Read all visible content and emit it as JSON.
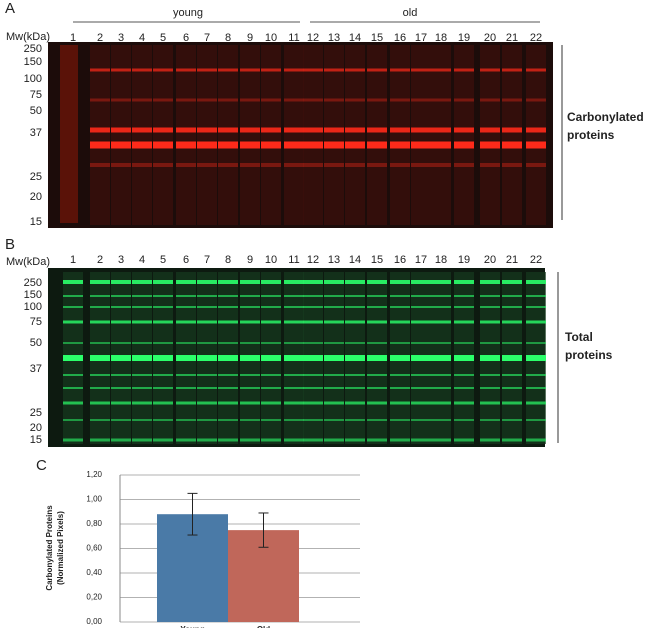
{
  "panel_a": {
    "label": "A",
    "mw_header": "Mw(kDa)",
    "groups": [
      "young",
      "old"
    ],
    "lanes": [
      "1",
      "2",
      "3",
      "4",
      "5",
      "6",
      "7",
      "8",
      "9",
      "10",
      "11",
      "12",
      "13",
      "14",
      "15",
      "16",
      "17",
      "18",
      "19",
      "20",
      "21",
      "22"
    ],
    "mw": [
      "250",
      "150",
      "100",
      "75",
      "50",
      "37",
      "25",
      "20",
      "15"
    ],
    "side_label": [
      "Carbonylated",
      "proteins"
    ]
  },
  "panel_b": {
    "label": "B",
    "mw_header": "Mw(kDa)",
    "lanes": [
      "1",
      "2",
      "3",
      "4",
      "5",
      "6",
      "7",
      "8",
      "9",
      "10",
      "11",
      "12",
      "13",
      "14",
      "15",
      "16",
      "17",
      "18",
      "19",
      "20",
      "21",
      "22"
    ],
    "mw": [
      "250",
      "150",
      "100",
      "75",
      "50",
      "37",
      "25",
      "20",
      "15"
    ],
    "side_label": [
      "Total",
      "proteins"
    ]
  },
  "chart_data": {
    "type": "bar",
    "label": "C",
    "ylabel": [
      "Carbonylated Proteins",
      "(Normalized Pixels)"
    ],
    "categories": [
      "Young",
      "Old"
    ],
    "values": [
      0.88,
      0.75
    ],
    "errors": [
      0.17,
      0.14
    ],
    "colors": [
      "#4a7aa7",
      "#c0675a"
    ],
    "ylim": [
      0,
      1.2
    ],
    "yticks": [
      {
        "value": 0,
        "label": "0,00"
      },
      {
        "value": 0.2,
        "label": "0,20"
      },
      {
        "value": 0.4,
        "label": "0,40"
      },
      {
        "value": 0.6,
        "label": "0,60"
      },
      {
        "value": 0.8,
        "label": "0,80"
      },
      {
        "value": 1.0,
        "label": "1,00"
      },
      {
        "value": 1.2,
        "label": "1,20"
      }
    ],
    "grid": true
  }
}
